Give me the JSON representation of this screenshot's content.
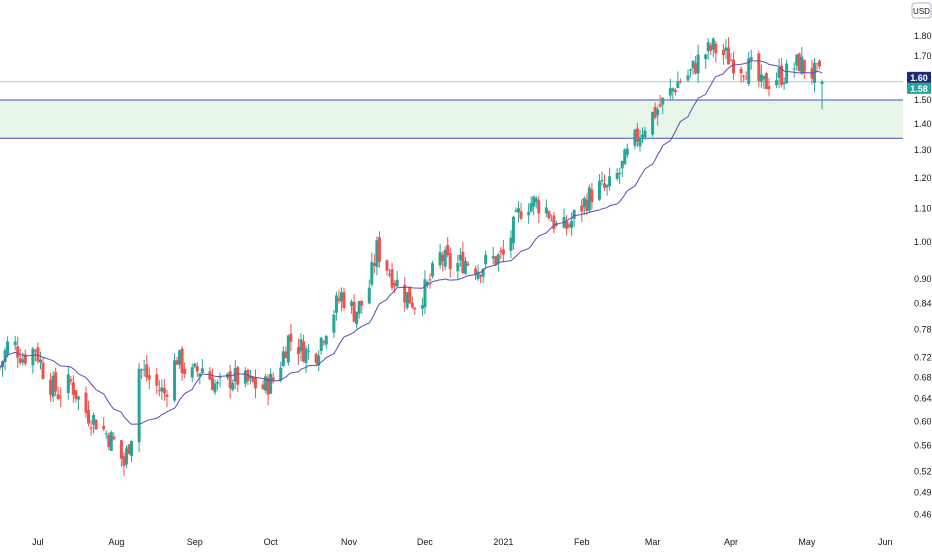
{
  "chart_data": {
    "type": "candlestick",
    "currency": "USD",
    "y_scale": "log",
    "ylim": [
      0.44,
      1.95
    ],
    "y_ticks": [
      "1.80",
      "1.70",
      "1.60",
      "1.50",
      "1.40",
      "1.30",
      "1.20",
      "1.10",
      "1.00",
      "0.90",
      "0.84",
      "0.78",
      "0.72",
      "0.68",
      "0.64",
      "0.60",
      "0.56",
      "0.52",
      "0.49",
      "0.46"
    ],
    "x_ticks": [
      "Jul",
      "Aug",
      "Sep",
      "Oct",
      "Nov",
      "Dec",
      "2021",
      "Feb",
      "Mar",
      "Apr",
      "May",
      "Jun"
    ],
    "x_range": [
      "2020-06-16",
      "2021-06-08"
    ],
    "price_tags": [
      {
        "label": "1.60",
        "value": 1.6,
        "color": "#1e2a78"
      },
      {
        "label": "1.58",
        "value": 1.58,
        "color": "#26a69a"
      }
    ],
    "horizontal_lines": [
      {
        "value": 1.58,
        "color": "#9ad1cb"
      },
      {
        "value": 1.5,
        "color": "#3f51b5"
      },
      {
        "value": 1.345,
        "color": "#3f51b5"
      }
    ],
    "zone": {
      "low": 1.345,
      "high": 1.5,
      "color": "#e8f5e9"
    },
    "moving_average_color": "#5c4db1",
    "up_color": "#26a69a",
    "down_color": "#ef5350",
    "close_path": [
      [
        "2020-06-16",
        0.7
      ],
      [
        "2020-06-20",
        0.76
      ],
      [
        "2020-06-25",
        0.72
      ],
      [
        "2020-06-30",
        0.74
      ],
      [
        "2020-07-04",
        0.68
      ],
      [
        "2020-07-09",
        0.65
      ],
      [
        "2020-07-14",
        0.67
      ],
      [
        "2020-07-19",
        0.62
      ],
      [
        "2020-07-24",
        0.6
      ],
      [
        "2020-07-28",
        0.58
      ],
      [
        "2020-08-01",
        0.56
      ],
      [
        "2020-08-04",
        0.53
      ],
      [
        "2020-08-07",
        0.58
      ],
      [
        "2020-08-10",
        0.7
      ],
      [
        "2020-08-15",
        0.67
      ],
      [
        "2020-08-20",
        0.65
      ],
      [
        "2020-08-25",
        0.72
      ],
      [
        "2020-08-30",
        0.68
      ],
      [
        "2020-09-04",
        0.7
      ],
      [
        "2020-09-10",
        0.66
      ],
      [
        "2020-09-16",
        0.68
      ],
      [
        "2020-09-22",
        0.67
      ],
      [
        "2020-09-28",
        0.66
      ],
      [
        "2020-10-03",
        0.68
      ],
      [
        "2020-10-08",
        0.76
      ],
      [
        "2020-10-13",
        0.74
      ],
      [
        "2020-10-18",
        0.72
      ],
      [
        "2020-10-24",
        0.8
      ],
      [
        "2020-10-29",
        0.86
      ],
      [
        "2020-11-03",
        0.82
      ],
      [
        "2020-11-08",
        0.85
      ],
      [
        "2020-11-12",
        0.98
      ],
      [
        "2020-11-17",
        0.92
      ],
      [
        "2020-11-22",
        0.87
      ],
      [
        "2020-11-27",
        0.84
      ],
      [
        "2020-12-02",
        0.88
      ],
      [
        "2020-12-07",
        0.96
      ],
      [
        "2020-12-12",
        0.93
      ],
      [
        "2020-12-17",
        0.95
      ],
      [
        "2020-12-22",
        0.93
      ],
      [
        "2020-12-27",
        0.95
      ],
      [
        "2021-01-01",
        0.96
      ],
      [
        "2021-01-05",
        1.04
      ],
      [
        "2021-01-09",
        1.12
      ],
      [
        "2021-01-14",
        1.12
      ],
      [
        "2021-01-18",
        1.1
      ],
      [
        "2021-01-23",
        1.03
      ],
      [
        "2021-01-27",
        1.05
      ],
      [
        "2021-02-02",
        1.12
      ],
      [
        "2021-02-07",
        1.17
      ],
      [
        "2021-02-11",
        1.16
      ],
      [
        "2021-02-16",
        1.22
      ],
      [
        "2021-02-21",
        1.32
      ],
      [
        "2021-02-26",
        1.4
      ],
      [
        "2021-03-02",
        1.45
      ],
      [
        "2021-03-06",
        1.5
      ],
      [
        "2021-03-11",
        1.58
      ],
      [
        "2021-03-16",
        1.62
      ],
      [
        "2021-03-20",
        1.7
      ],
      [
        "2021-03-25",
        1.74
      ],
      [
        "2021-03-30",
        1.7
      ],
      [
        "2021-04-04",
        1.66
      ],
      [
        "2021-04-09",
        1.64
      ],
      [
        "2021-04-13",
        1.56
      ],
      [
        "2021-04-18",
        1.6
      ],
      [
        "2021-04-23",
        1.62
      ],
      [
        "2021-04-28",
        1.67
      ],
      [
        "2021-05-03",
        1.62
      ],
      [
        "2021-05-07",
        1.6
      ],
      [
        "2021-05-09",
        1.58
      ]
    ]
  }
}
